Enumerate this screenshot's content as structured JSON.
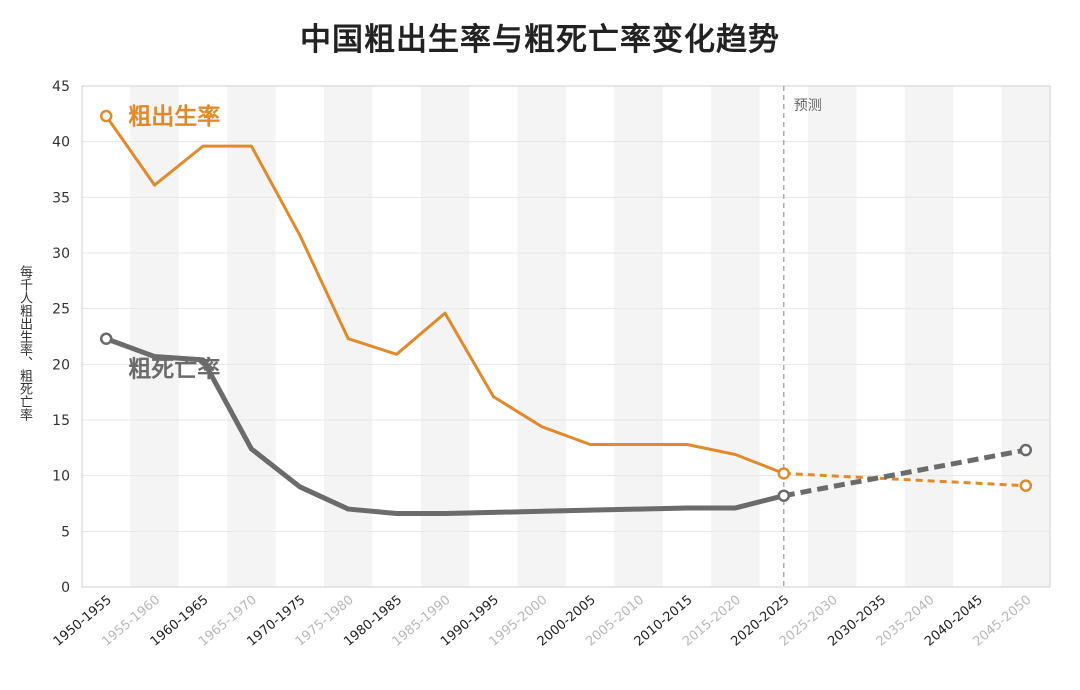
{
  "chart_data": {
    "type": "line",
    "title": "中国粗出生率与粗死亡率变化趋势",
    "ylabel": "每千人粗出生率、粗死亡率",
    "xlabel": "",
    "ylim": [
      0,
      45
    ],
    "yticks": [
      0,
      5,
      10,
      15,
      20,
      25,
      30,
      35,
      40,
      45
    ],
    "categories": [
      "1950-1955",
      "1955-1960",
      "1960-1965",
      "1965-1970",
      "1970-1975",
      "1975-1980",
      "1980-1985",
      "1985-1990",
      "1990-1995",
      "1995-2000",
      "2000-2005",
      "2005-2010",
      "2010-2015",
      "2015-2020",
      "2020-2025",
      "2025-2030",
      "2030-2035",
      "2035-2040",
      "2040-2045",
      "2045-2050"
    ],
    "series": [
      {
        "name": "粗出生率",
        "color": "#e08a2c",
        "values": [
          42.3,
          36.1,
          39.6,
          39.6,
          31.6,
          22.3,
          20.9,
          24.6,
          17.1,
          14.4,
          12.8,
          12.8,
          12.8,
          11.9,
          10.2,
          null,
          null,
          null,
          null,
          9.1
        ],
        "forecast": {
          "from": "2020-2025",
          "to": "2045-2050"
        }
      },
      {
        "name": "粗死亡率",
        "color": "#6b6b6b",
        "values": [
          22.3,
          20.7,
          20.4,
          12.4,
          9.0,
          7.0,
          6.6,
          6.6,
          6.7,
          6.8,
          6.9,
          7.0,
          7.1,
          7.1,
          8.2,
          null,
          null,
          null,
          null,
          12.3
        ],
        "forecast": {
          "from": "2020-2025",
          "to": "2045-2050"
        }
      }
    ],
    "annotations": [
      {
        "text": "预测",
        "at": "2020-2025"
      }
    ],
    "grid": true,
    "legend": "inline labels"
  }
}
